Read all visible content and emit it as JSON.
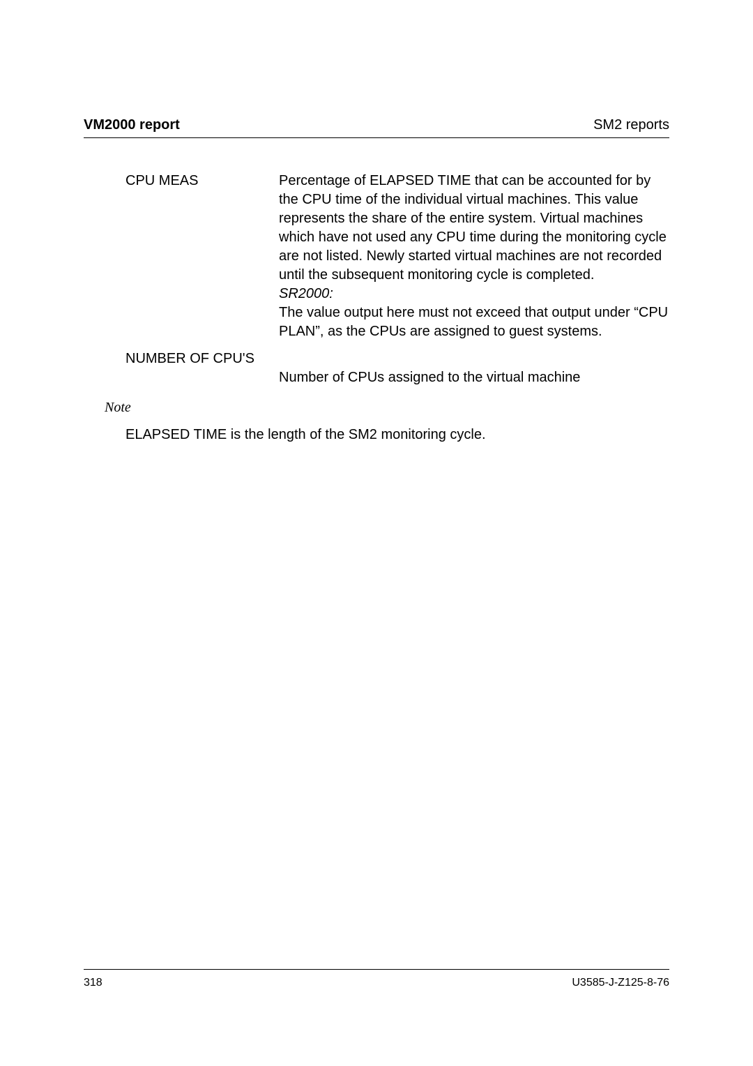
{
  "header": {
    "left": "VM2000 report",
    "right": "SM2 reports"
  },
  "definitions": [
    {
      "term": "CPU MEAS",
      "desc_main": "Percentage of ELAPSED TIME that can be accounted for by the CPU time of the individual virtual machines. This value represents the share of the entire system. Virtual machines which have not used any CPU time during the monitoring cycle are not listed. Newly started virtual machines are not recorded until the subsequent monitoring cycle is completed.",
      "desc_italic": "SR2000:",
      "desc_after": "The value output here must not exceed that output under “CPU PLAN”, as the CPUs are assigned to guest systems."
    },
    {
      "term": "NUMBER OF CPU'S",
      "desc_main": "",
      "desc_italic": "",
      "desc_after": "Number of CPUs assigned to the virtual machine",
      "desc_below": true
    }
  ],
  "note": {
    "label": "Note",
    "body": "ELAPSED TIME is the length of the SM2 monitoring cycle."
  },
  "footer": {
    "page": "318",
    "docid": "U3585-J-Z125-8-76"
  }
}
